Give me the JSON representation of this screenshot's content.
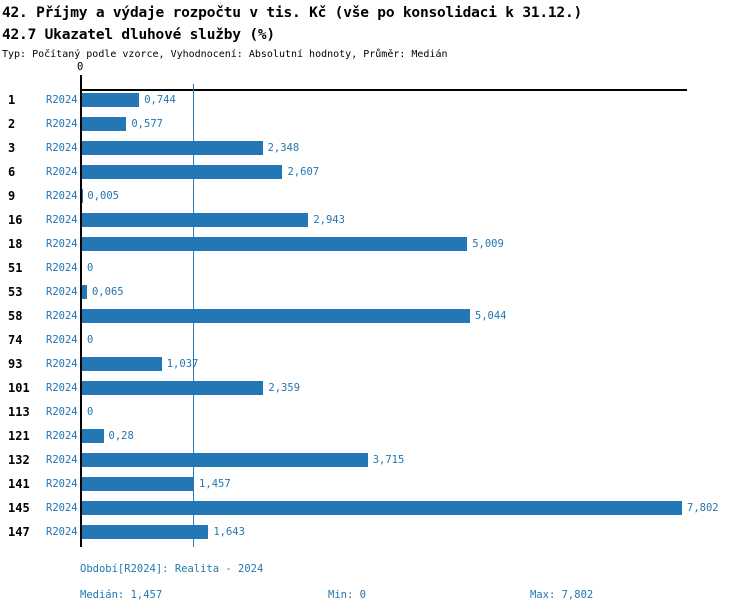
{
  "title": "42. Příjmy a výdaje rozpočtu v tis. Kč (vše po konsolidaci k 31.12.)",
  "subtitle": "42.7 Ukazatel dluhové služby (%)",
  "meta": "Typ: Počítaný podle vzorce, Vyhodnocení: Absolutní hodnoty, Průměr: Medián",
  "colors": {
    "bar": "#2277b4",
    "blue_text": "#2277b4",
    "axis": "#000000"
  },
  "chart_data": {
    "type": "bar",
    "orientation": "horizontal",
    "title": "42.7 Ukazatel dluhové služby (%)",
    "series_label": "R2024",
    "axis_zero_label": "0",
    "xlim": [
      0,
      7.802
    ],
    "median_value": 1.457,
    "grid": false,
    "categories": [
      "1",
      "2",
      "3",
      "6",
      "9",
      "16",
      "18",
      "51",
      "53",
      "58",
      "74",
      "93",
      "101",
      "113",
      "121",
      "132",
      "141",
      "145",
      "147"
    ],
    "values": [
      0.744,
      0.577,
      2.348,
      2.607,
      0.005,
      2.943,
      5.009,
      0,
      0.065,
      5.044,
      0,
      1.037,
      2.359,
      0,
      0.28,
      3.715,
      1.457,
      7.802,
      1.643
    ],
    "value_labels": [
      "0,744",
      "0,577",
      "2,348",
      "2,607",
      "0,005",
      "2,943",
      "5,009",
      "0",
      "0,065",
      "5,044",
      "0",
      "1,037",
      "2,359",
      "0",
      "0,28",
      "3,715",
      "1,457",
      "7,802",
      "1,643"
    ]
  },
  "footer": {
    "period": "Období[R2024]: Realita - 2024",
    "median": "Medián: 1,457",
    "min": "Min: 0",
    "max": "Max: 7,802"
  }
}
